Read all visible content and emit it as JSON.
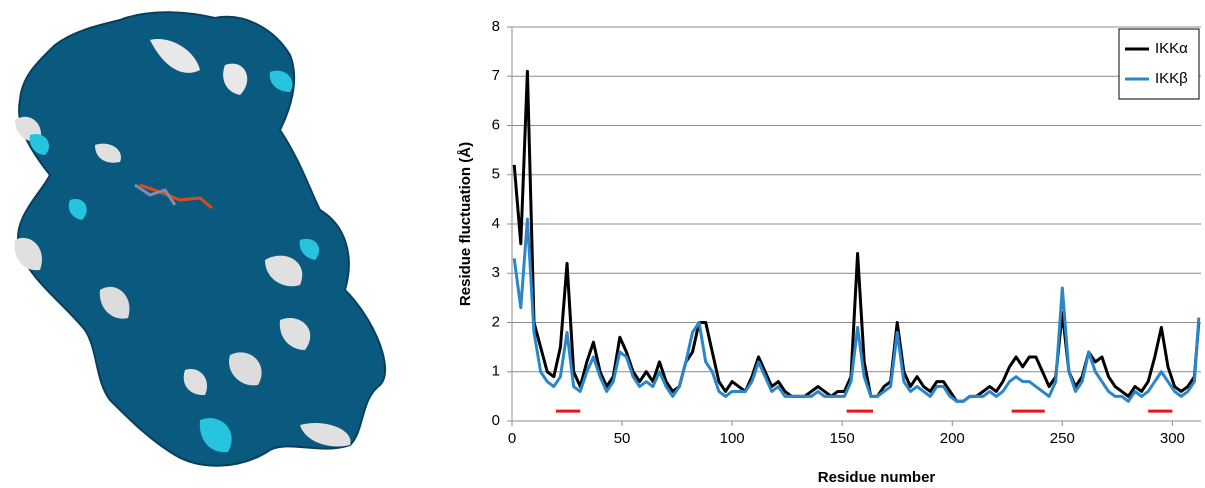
{
  "chart_data": {
    "type": "line",
    "x_label": "Residue number",
    "y_label": "Residue fluctuation (Å)",
    "xlim": [
      0,
      313
    ],
    "ylim": [
      0,
      8
    ],
    "xticks": [
      0,
      50,
      100,
      150,
      200,
      250,
      300
    ],
    "yticks": [
      0,
      1,
      2,
      3,
      4,
      5,
      6,
      7,
      8
    ],
    "grid": true,
    "legend": "top-right",
    "x": [
      1,
      4,
      7,
      10,
      13,
      16,
      19,
      22,
      25,
      28,
      31,
      34,
      37,
      40,
      43,
      46,
      49,
      52,
      55,
      58,
      61,
      64,
      67,
      70,
      73,
      76,
      79,
      82,
      85,
      88,
      91,
      94,
      97,
      100,
      103,
      106,
      109,
      112,
      115,
      118,
      121,
      124,
      127,
      130,
      133,
      136,
      139,
      142,
      145,
      148,
      151,
      154,
      157,
      160,
      163,
      166,
      169,
      172,
      175,
      178,
      181,
      184,
      187,
      190,
      193,
      196,
      199,
      202,
      205,
      208,
      211,
      214,
      217,
      220,
      223,
      226,
      229,
      232,
      235,
      238,
      241,
      244,
      247,
      250,
      253,
      256,
      259,
      262,
      265,
      268,
      271,
      274,
      277,
      280,
      283,
      286,
      289,
      292,
      295,
      298,
      301,
      304,
      307,
      310,
      312
    ],
    "series": [
      {
        "name": "IKKα",
        "color": "#000000",
        "values": [
          5.2,
          3.6,
          7.1,
          2.0,
          1.5,
          1.0,
          0.9,
          1.5,
          3.2,
          1.0,
          0.7,
          1.2,
          1.6,
          1.0,
          0.7,
          0.9,
          1.7,
          1.4,
          1.0,
          0.8,
          1.0,
          0.8,
          1.2,
          0.8,
          0.6,
          0.7,
          1.2,
          1.4,
          2.0,
          2.0,
          1.4,
          0.8,
          0.6,
          0.8,
          0.7,
          0.6,
          0.9,
          1.3,
          1.0,
          0.7,
          0.8,
          0.6,
          0.5,
          0.5,
          0.5,
          0.6,
          0.7,
          0.6,
          0.5,
          0.6,
          0.6,
          0.9,
          3.4,
          1.2,
          0.5,
          0.5,
          0.7,
          0.8,
          2.0,
          1.0,
          0.7,
          0.9,
          0.7,
          0.6,
          0.8,
          0.8,
          0.6,
          0.4,
          0.4,
          0.5,
          0.5,
          0.6,
          0.7,
          0.6,
          0.8,
          1.1,
          1.3,
          1.1,
          1.3,
          1.3,
          1.0,
          0.7,
          0.9,
          2.2,
          1.0,
          0.7,
          0.9,
          1.4,
          1.2,
          1.3,
          0.9,
          0.7,
          0.6,
          0.5,
          0.7,
          0.6,
          0.8,
          1.3,
          1.9,
          1.1,
          0.7,
          0.6,
          0.7,
          0.9,
          2.0
        ]
      },
      {
        "name": "IKKβ",
        "color": "#2a86c8",
        "values": [
          3.3,
          2.3,
          4.1,
          1.8,
          1.0,
          0.8,
          0.7,
          0.9,
          1.8,
          0.7,
          0.6,
          1.0,
          1.3,
          0.9,
          0.6,
          0.8,
          1.4,
          1.3,
          0.9,
          0.7,
          0.8,
          0.7,
          1.0,
          0.7,
          0.5,
          0.7,
          1.2,
          1.8,
          2.0,
          1.2,
          1.0,
          0.6,
          0.5,
          0.6,
          0.6,
          0.6,
          0.8,
          1.2,
          0.9,
          0.6,
          0.7,
          0.5,
          0.5,
          0.5,
          0.5,
          0.5,
          0.6,
          0.5,
          0.5,
          0.5,
          0.5,
          0.8,
          1.9,
          0.9,
          0.5,
          0.5,
          0.6,
          0.7,
          1.8,
          0.8,
          0.6,
          0.7,
          0.6,
          0.5,
          0.7,
          0.7,
          0.5,
          0.4,
          0.4,
          0.5,
          0.5,
          0.5,
          0.6,
          0.5,
          0.6,
          0.8,
          0.9,
          0.8,
          0.8,
          0.7,
          0.6,
          0.5,
          0.8,
          2.7,
          1.0,
          0.6,
          0.8,
          1.4,
          1.0,
          0.8,
          0.6,
          0.5,
          0.5,
          0.4,
          0.6,
          0.5,
          0.6,
          0.8,
          1.0,
          0.8,
          0.6,
          0.5,
          0.6,
          0.8,
          2.1
        ]
      }
    ],
    "highlights": {
      "color": "#e8151b",
      "y": 0.2,
      "spans": [
        [
          20,
          31
        ],
        [
          152,
          164
        ],
        [
          227,
          242
        ],
        [
          289,
          300
        ]
      ]
    }
  }
}
